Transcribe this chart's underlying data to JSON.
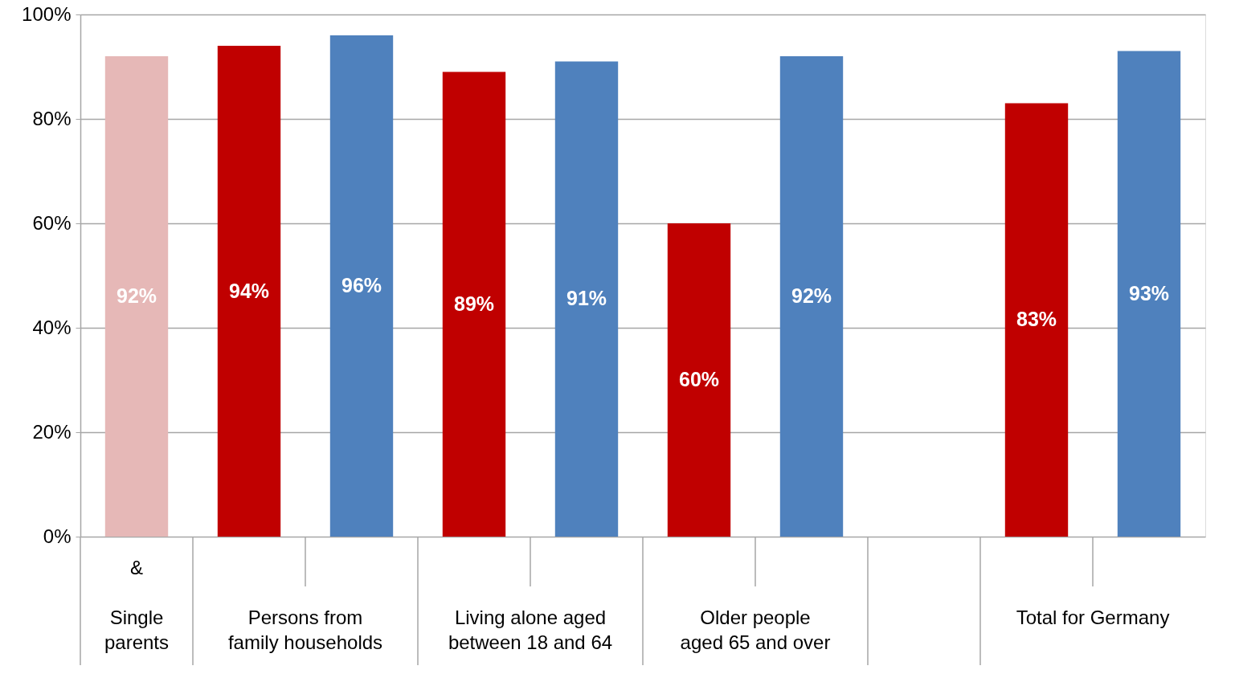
{
  "chart_data": {
    "type": "bar",
    "categories": [
      "Single\nparents",
      "Persons from\nfamily households",
      "Living alone aged\nbetween 18 and 64",
      "Older people\naged 65 and over",
      null,
      "Total for Germany"
    ],
    "series": [
      {
        "color": "#e6b8b7",
        "values": [
          92,
          null,
          null,
          null,
          null,
          null
        ],
        "value_labels": [
          "92%",
          null,
          null,
          null,
          null,
          null
        ]
      },
      {
        "color": "#c00000",
        "values": [
          null,
          94,
          89,
          60,
          null,
          83
        ],
        "value_labels": [
          null,
          "94%",
          "89%",
          "60%",
          null,
          "83%"
        ]
      },
      {
        "color": "#4f81bd",
        "values": [
          null,
          96,
          91,
          92,
          null,
          93
        ],
        "value_labels": [
          null,
          "96%",
          "91%",
          "92%",
          null,
          "93%"
        ]
      }
    ],
    "ylim": [
      0,
      100
    ],
    "yticks": [
      {
        "value": 0,
        "label": "0%"
      },
      {
        "value": 20,
        "label": "20%"
      },
      {
        "value": 40,
        "label": "40%"
      },
      {
        "value": 60,
        "label": "60%"
      },
      {
        "value": 80,
        "label": "80%"
      },
      {
        "value": 100,
        "label": "100%"
      }
    ],
    "grid": "y",
    "annotations": [
      "&"
    ]
  }
}
